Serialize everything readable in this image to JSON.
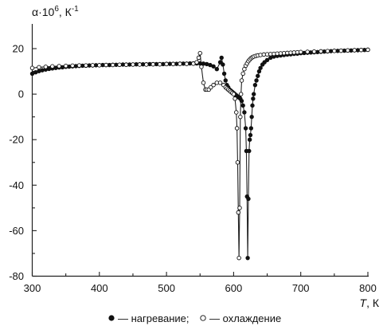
{
  "chart_data": {
    "type": "scatter",
    "ylabel_main": "α·10",
    "ylabel_exp": "6",
    "ylabel_unit": ", К",
    "ylabel_unit_exp": "-1",
    "xlabel_var": "T",
    "xlabel_unit": ", К",
    "xlim": [
      300,
      800
    ],
    "ylim": [
      -80,
      25
    ],
    "x_ticks": [
      300,
      400,
      500,
      600,
      700,
      800
    ],
    "y_ticks": [
      20,
      0,
      -20,
      -40,
      -60,
      -80
    ],
    "x_tick_labels": [
      "300",
      "400",
      "500",
      "600",
      "700",
      "800"
    ],
    "y_tick_labels": [
      "20",
      "0",
      "-20",
      "-40",
      "-60",
      "-80"
    ],
    "grid": false,
    "legend": {
      "placement": "bottom-center",
      "heating_label": "— нагревание;",
      "cooling_label": "— охлаждение"
    },
    "series": [
      {
        "name": "нагревание",
        "marker": "filled-circle",
        "x": [
          300,
          305,
          310,
          315,
          320,
          325,
          330,
          335,
          340,
          345,
          350,
          355,
          360,
          365,
          370,
          375,
          380,
          385,
          390,
          395,
          400,
          405,
          410,
          415,
          420,
          425,
          430,
          435,
          440,
          445,
          450,
          455,
          460,
          465,
          470,
          475,
          480,
          485,
          490,
          495,
          500,
          505,
          510,
          515,
          520,
          525,
          530,
          535,
          540,
          545,
          550,
          555,
          560,
          565,
          570,
          575,
          580,
          582,
          584,
          586,
          588,
          590,
          592,
          594,
          596,
          598,
          600,
          602,
          604,
          606,
          608,
          610,
          612,
          614,
          616,
          618,
          619,
          620,
          621,
          622,
          623,
          624,
          625,
          626,
          627,
          628,
          629,
          630,
          632,
          634,
          636,
          638,
          640,
          643,
          646,
          650,
          655,
          660,
          665,
          670,
          675,
          680,
          685,
          690,
          695,
          700,
          705,
          710,
          715,
          720,
          725,
          730,
          735,
          740,
          745,
          750,
          755,
          760,
          765,
          770,
          775,
          780,
          785,
          790,
          795,
          800
        ],
        "y": [
          9,
          9.6,
          10.1,
          10.5,
          10.8,
          11.1,
          11.3,
          11.5,
          11.7,
          11.8,
          12,
          12.1,
          12.2,
          12.3,
          12.4,
          12.5,
          12.5,
          12.6,
          12.6,
          12.7,
          12.7,
          12.8,
          12.8,
          12.8,
          12.9,
          12.9,
          12.9,
          13,
          13,
          13,
          13,
          13.1,
          13.1,
          13.1,
          13.1,
          13.2,
          13.2,
          13.2,
          13.2,
          13.2,
          13.3,
          13.3,
          13.3,
          13.3,
          13.4,
          13.4,
          13.4,
          13.5,
          13.5,
          13.5,
          13.5,
          13.4,
          13.2,
          12.8,
          12.2,
          11,
          14,
          16,
          13,
          9,
          6,
          4,
          3,
          2,
          1.5,
          1,
          0.5,
          0,
          -0.5,
          -1,
          -1.5,
          -2,
          -3,
          -5,
          -8,
          -15,
          -25,
          -45,
          -72,
          -46,
          -25,
          -20,
          -18,
          -15,
          -10,
          -5,
          -2,
          0,
          4,
          6,
          8,
          10,
          11.5,
          13,
          14,
          15,
          16,
          16.5,
          16.8,
          17,
          17.2,
          17.4,
          17.5,
          17.7,
          17.8,
          18,
          18.1,
          18.2,
          18.3,
          18.4,
          18.5,
          18.6,
          18.7,
          18.8,
          18.9,
          19,
          19,
          19.1,
          19.1,
          19.2,
          19.2,
          19.3,
          19.3,
          19.4,
          19.4,
          19.5
        ]
      },
      {
        "name": "охлаждение",
        "marker": "open-circle",
        "x": [
          300,
          310,
          320,
          330,
          340,
          350,
          360,
          370,
          380,
          390,
          400,
          410,
          420,
          430,
          440,
          450,
          460,
          470,
          480,
          490,
          500,
          510,
          520,
          530,
          540,
          545,
          548,
          550,
          552,
          555,
          558,
          560,
          563,
          566,
          570,
          575,
          580,
          585,
          588,
          590,
          592,
          594,
          596,
          598,
          600,
          602,
          604,
          605,
          606,
          607,
          608,
          609,
          610,
          611,
          612,
          614,
          616,
          618,
          620,
          622,
          624,
          626,
          628,
          630,
          633,
          636,
          640,
          645,
          650,
          655,
          660,
          665,
          670,
          675,
          680,
          685,
          690,
          695,
          700,
          710,
          720,
          730,
          740,
          750,
          760,
          770,
          780,
          790,
          800
        ],
        "y": [
          11.5,
          11.8,
          12,
          12.2,
          12.3,
          12.4,
          12.5,
          12.6,
          12.6,
          12.7,
          12.7,
          12.8,
          12.8,
          12.9,
          12.9,
          13,
          13,
          13,
          13.1,
          13.1,
          13.2,
          13.2,
          13.3,
          13.3,
          13.4,
          14,
          16,
          18,
          12,
          5,
          2,
          2,
          2,
          3,
          4,
          5,
          5,
          4,
          3,
          2.5,
          2,
          1.5,
          1,
          0.5,
          0,
          -2,
          -8,
          -15,
          -30,
          -52,
          -72,
          -50,
          -10,
          0,
          6,
          9,
          11,
          12.5,
          13.5,
          14.5,
          15.2,
          15.8,
          16.2,
          16.5,
          16.8,
          17,
          17.2,
          17.4,
          17.5,
          17.6,
          17.7,
          17.8,
          17.9,
          18,
          18.1,
          18.2,
          18.3,
          18.4,
          18.5,
          18.6,
          18.7,
          18.8,
          18.9,
          19,
          19.1,
          19.2,
          19.3,
          19.4,
          19.5
        ]
      }
    ]
  }
}
